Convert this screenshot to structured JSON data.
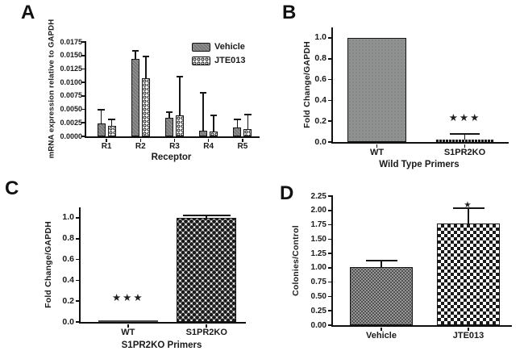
{
  "figure": {
    "background": "#ffffff",
    "ink_color": "#1a1a1a",
    "bar_gray": "#8e908f"
  },
  "panels": {
    "A": {
      "label": "A",
      "chart_data": {
        "type": "bar",
        "title": "",
        "xlabel": "Receptor",
        "ylabel": "mRNA expression relative to GAPDH",
        "ylim": [
          0,
          0.0175
        ],
        "yticks": [
          "0.0000",
          "0.0025",
          "0.0050",
          "0.0075",
          "0.0100",
          "0.0125",
          "0.0150",
          "0.0175"
        ],
        "categories": [
          "R1",
          "R2",
          "R3",
          "R4",
          "R5"
        ],
        "series": [
          {
            "name": "Vehicle",
            "pattern": "gray-hatch",
            "values": [
              0.0024,
              0.0143,
              0.0035,
              0.001,
              0.0017
            ],
            "errors_up": [
              0.0025,
              0.0016,
              0.001,
              0.0071,
              0.0015
            ]
          },
          {
            "name": "JTE013",
            "pattern": "rings",
            "values": [
              0.0019,
              0.0107,
              0.0039,
              0.0009,
              0.0013
            ],
            "errors_up": [
              0.0013,
              0.0041,
              0.0072,
              0.003,
              0.0028
            ]
          }
        ],
        "legend_position": "top-right",
        "grid": false
      }
    },
    "B": {
      "label": "B",
      "chart_data": {
        "type": "bar",
        "title": "",
        "xlabel": "Wild Type Primers",
        "ylabel": "Fold Change/GAPDH",
        "ylim": [
          0,
          1.1
        ],
        "yticks": [
          "0.0",
          "0.2",
          "0.4",
          "0.6",
          "0.8",
          "1.0"
        ],
        "categories": [
          "WT",
          "S1PR2KO"
        ],
        "series": [
          {
            "name": "",
            "patterns": [
              "gray-solid",
              "black-dotted"
            ],
            "values": [
              1.0,
              0.025
            ],
            "errors_up": [
              0,
              0.055
            ]
          }
        ],
        "annotations": [
          {
            "category": "S1PR2KO",
            "y": 0.23,
            "text": "★★★"
          }
        ],
        "grid": false
      }
    },
    "C": {
      "label": "C",
      "chart_data": {
        "type": "bar",
        "title": "",
        "xlabel": "S1PR2KO Primers",
        "ylabel": "Fold Change/GAPDH",
        "ylim": [
          0,
          1.1
        ],
        "yticks": [
          "0.0",
          "0.2",
          "0.4",
          "0.6",
          "0.8",
          "1.0"
        ],
        "categories": [
          "WT",
          "S1PR2KO"
        ],
        "series": [
          {
            "name": "",
            "patterns": [
              "thin-line",
              "dot-checker"
            ],
            "values": [
              0.008,
              1.0
            ],
            "errors_up": [
              0,
              0.02
            ]
          }
        ],
        "annotations": [
          {
            "category": "WT",
            "y": 0.23,
            "text": "★★★"
          }
        ],
        "grid": false
      }
    },
    "D": {
      "label": "D",
      "chart_data": {
        "type": "bar",
        "title": "",
        "xlabel": "",
        "ylabel": "Colonies/Control",
        "ylim": [
          0,
          2.25
        ],
        "yticks": [
          "0.00",
          "0.25",
          "0.50",
          "0.75",
          "1.00",
          "1.25",
          "1.50",
          "1.75",
          "2.00",
          "2.25"
        ],
        "categories": [
          "Vehicle",
          "JTE013"
        ],
        "series": [
          {
            "name": "",
            "patterns": [
              "gray-dots",
              "checker"
            ],
            "values": [
              1.01,
              1.77
            ],
            "errors_up": [
              0.12,
              0.27
            ]
          }
        ],
        "annotations": [
          {
            "category": "JTE013",
            "y": 2.1,
            "text": "★"
          }
        ],
        "grid": false
      }
    }
  }
}
